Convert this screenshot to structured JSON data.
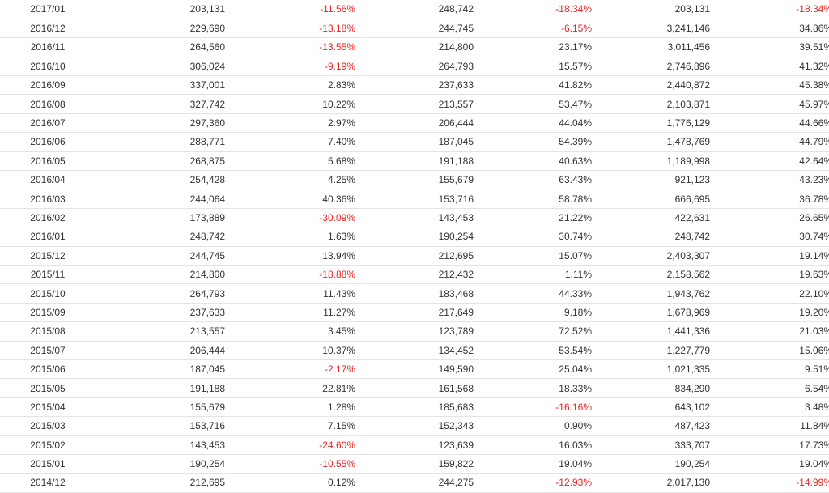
{
  "colors": {
    "negative": "#ee2222",
    "text": "#333333",
    "row_border": "#e4e4e4"
  },
  "rows": [
    {
      "period": "2017/01",
      "v1": "203,131",
      "p1": "-11.56%",
      "v2": "248,742",
      "p2": "-18.34%",
      "v3": "203,131",
      "p3": "-18.34%"
    },
    {
      "period": "2016/12",
      "v1": "229,690",
      "p1": "-13.18%",
      "v2": "244,745",
      "p2": "-6.15%",
      "v3": "3,241,146",
      "p3": "34.86%"
    },
    {
      "period": "2016/11",
      "v1": "264,560",
      "p1": "-13.55%",
      "v2": "214,800",
      "p2": "23.17%",
      "v3": "3,011,456",
      "p3": "39.51%"
    },
    {
      "period": "2016/10",
      "v1": "306,024",
      "p1": "-9.19%",
      "v2": "264,793",
      "p2": "15.57%",
      "v3": "2,746,896",
      "p3": "41.32%"
    },
    {
      "period": "2016/09",
      "v1": "337,001",
      "p1": "2.83%",
      "v2": "237,633",
      "p2": "41.82%",
      "v3": "2,440,872",
      "p3": "45.38%"
    },
    {
      "period": "2016/08",
      "v1": "327,742",
      "p1": "10.22%",
      "v2": "213,557",
      "p2": "53.47%",
      "v3": "2,103,871",
      "p3": "45.97%"
    },
    {
      "period": "2016/07",
      "v1": "297,360",
      "p1": "2.97%",
      "v2": "206,444",
      "p2": "44.04%",
      "v3": "1,776,129",
      "p3": "44.66%"
    },
    {
      "period": "2016/06",
      "v1": "288,771",
      "p1": "7.40%",
      "v2": "187,045",
      "p2": "54.39%",
      "v3": "1,478,769",
      "p3": "44.79%"
    },
    {
      "period": "2016/05",
      "v1": "268,875",
      "p1": "5.68%",
      "v2": "191,188",
      "p2": "40.63%",
      "v3": "1,189,998",
      "p3": "42.64%"
    },
    {
      "period": "2016/04",
      "v1": "254,428",
      "p1": "4.25%",
      "v2": "155,679",
      "p2": "63.43%",
      "v3": "921,123",
      "p3": "43.23%"
    },
    {
      "period": "2016/03",
      "v1": "244,064",
      "p1": "40.36%",
      "v2": "153,716",
      "p2": "58.78%",
      "v3": "666,695",
      "p3": "36.78%"
    },
    {
      "period": "2016/02",
      "v1": "173,889",
      "p1": "-30.09%",
      "v2": "143,453",
      "p2": "21.22%",
      "v3": "422,631",
      "p3": "26.65%"
    },
    {
      "period": "2016/01",
      "v1": "248,742",
      "p1": "1.63%",
      "v2": "190,254",
      "p2": "30.74%",
      "v3": "248,742",
      "p3": "30.74%"
    },
    {
      "period": "2015/12",
      "v1": "244,745",
      "p1": "13.94%",
      "v2": "212,695",
      "p2": "15.07%",
      "v3": "2,403,307",
      "p3": "19.14%"
    },
    {
      "period": "2015/11",
      "v1": "214,800",
      "p1": "-18.88%",
      "v2": "212,432",
      "p2": "1.11%",
      "v3": "2,158,562",
      "p3": "19.63%"
    },
    {
      "period": "2015/10",
      "v1": "264,793",
      "p1": "11.43%",
      "v2": "183,468",
      "p2": "44.33%",
      "v3": "1,943,762",
      "p3": "22.10%"
    },
    {
      "period": "2015/09",
      "v1": "237,633",
      "p1": "11.27%",
      "v2": "217,649",
      "p2": "9.18%",
      "v3": "1,678,969",
      "p3": "19.20%"
    },
    {
      "period": "2015/08",
      "v1": "213,557",
      "p1": "3.45%",
      "v2": "123,789",
      "p2": "72.52%",
      "v3": "1,441,336",
      "p3": "21.03%"
    },
    {
      "period": "2015/07",
      "v1": "206,444",
      "p1": "10.37%",
      "v2": "134,452",
      "p2": "53.54%",
      "v3": "1,227,779",
      "p3": "15.06%"
    },
    {
      "period": "2015/06",
      "v1": "187,045",
      "p1": "-2.17%",
      "v2": "149,590",
      "p2": "25.04%",
      "v3": "1,021,335",
      "p3": "9.51%"
    },
    {
      "period": "2015/05",
      "v1": "191,188",
      "p1": "22.81%",
      "v2": "161,568",
      "p2": "18.33%",
      "v3": "834,290",
      "p3": "6.54%"
    },
    {
      "period": "2015/04",
      "v1": "155,679",
      "p1": "1.28%",
      "v2": "185,683",
      "p2": "-16.16%",
      "v3": "643,102",
      "p3": "3.48%"
    },
    {
      "period": "2015/03",
      "v1": "153,716",
      "p1": "7.15%",
      "v2": "152,343",
      "p2": "0.90%",
      "v3": "487,423",
      "p3": "11.84%"
    },
    {
      "period": "2015/02",
      "v1": "143,453",
      "p1": "-24.60%",
      "v2": "123,639",
      "p2": "16.03%",
      "v3": "333,707",
      "p3": "17.73%"
    },
    {
      "period": "2015/01",
      "v1": "190,254",
      "p1": "-10.55%",
      "v2": "159,822",
      "p2": "19.04%",
      "v3": "190,254",
      "p3": "19.04%"
    },
    {
      "period": "2014/12",
      "v1": "212,695",
      "p1": "0.12%",
      "v2": "244,275",
      "p2": "-12.93%",
      "v3": "2,017,130",
      "p3": "-14.99%"
    }
  ]
}
